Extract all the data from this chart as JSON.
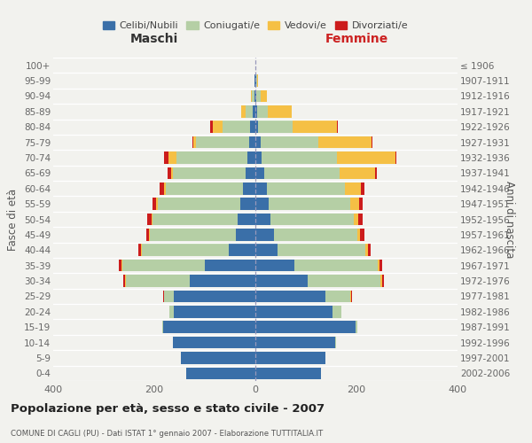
{
  "age_groups": [
    "100+",
    "95-99",
    "90-94",
    "85-89",
    "80-84",
    "75-79",
    "70-74",
    "65-69",
    "60-64",
    "55-59",
    "50-54",
    "45-49",
    "40-44",
    "35-39",
    "30-34",
    "25-29",
    "20-24",
    "15-19",
    "10-14",
    "5-9",
    "0-4"
  ],
  "birth_years": [
    "≤ 1906",
    "1907-1911",
    "1912-1916",
    "1917-1921",
    "1922-1926",
    "1927-1931",
    "1932-1936",
    "1937-1941",
    "1942-1946",
    "1947-1951",
    "1952-1956",
    "1957-1961",
    "1962-1966",
    "1967-1971",
    "1972-1976",
    "1977-1981",
    "1982-1986",
    "1987-1991",
    "1992-1996",
    "1997-2001",
    "2002-2006"
  ],
  "males": {
    "celibi": [
      0,
      1,
      2,
      5,
      10,
      12,
      15,
      20,
      25,
      30,
      35,
      38,
      52,
      100,
      130,
      162,
      162,
      183,
      163,
      147,
      136
    ],
    "coniugati": [
      0,
      1,
      5,
      15,
      55,
      105,
      142,
      143,
      153,
      163,
      168,
      170,
      173,
      163,
      126,
      18,
      8,
      2,
      1,
      0,
      0
    ],
    "vedovi": [
      0,
      0,
      1,
      8,
      20,
      5,
      15,
      3,
      3,
      3,
      3,
      2,
      2,
      2,
      2,
      1,
      0,
      0,
      0,
      0,
      0
    ],
    "divorziati": [
      0,
      0,
      0,
      0,
      5,
      2,
      8,
      8,
      8,
      8,
      8,
      5,
      5,
      5,
      4,
      2,
      0,
      0,
      0,
      0,
      0
    ]
  },
  "females": {
    "nubili": [
      0,
      1,
      2,
      4,
      5,
      10,
      12,
      18,
      22,
      27,
      30,
      36,
      43,
      77,
      103,
      138,
      153,
      198,
      158,
      138,
      130
    ],
    "coniugate": [
      0,
      2,
      8,
      20,
      68,
      115,
      150,
      148,
      156,
      160,
      165,
      165,
      175,
      165,
      145,
      50,
      18,
      4,
      2,
      0,
      0
    ],
    "vedove": [
      0,
      2,
      12,
      48,
      88,
      105,
      115,
      70,
      30,
      18,
      8,
      6,
      5,
      4,
      2,
      1,
      0,
      0,
      0,
      0,
      0
    ],
    "divorziate": [
      0,
      0,
      0,
      0,
      2,
      2,
      2,
      5,
      8,
      8,
      10,
      8,
      5,
      5,
      5,
      2,
      0,
      0,
      0,
      0,
      0
    ]
  },
  "colors": {
    "celibi": "#3a6fa8",
    "coniugati": "#b5cfa5",
    "vedovi": "#f5c045",
    "divorziati": "#cc1c1c"
  },
  "xlim": 400,
  "title": "Popolazione per età, sesso e stato civile - 2007",
  "subtitle": "COMUNE DI CAGLI (PU) - Dati ISTAT 1° gennaio 2007 - Elaborazione TUTTITALIA.IT",
  "legend_labels": [
    "Celibi/Nubili",
    "Coniugati/e",
    "Vedovi/e",
    "Divorziati/e"
  ],
  "ylabel_left": "Fasce di età",
  "ylabel_right": "Anni di nascita",
  "xlabel_left": "Maschi",
  "xlabel_right": "Femmine",
  "bg_color": "#f2f2ee"
}
